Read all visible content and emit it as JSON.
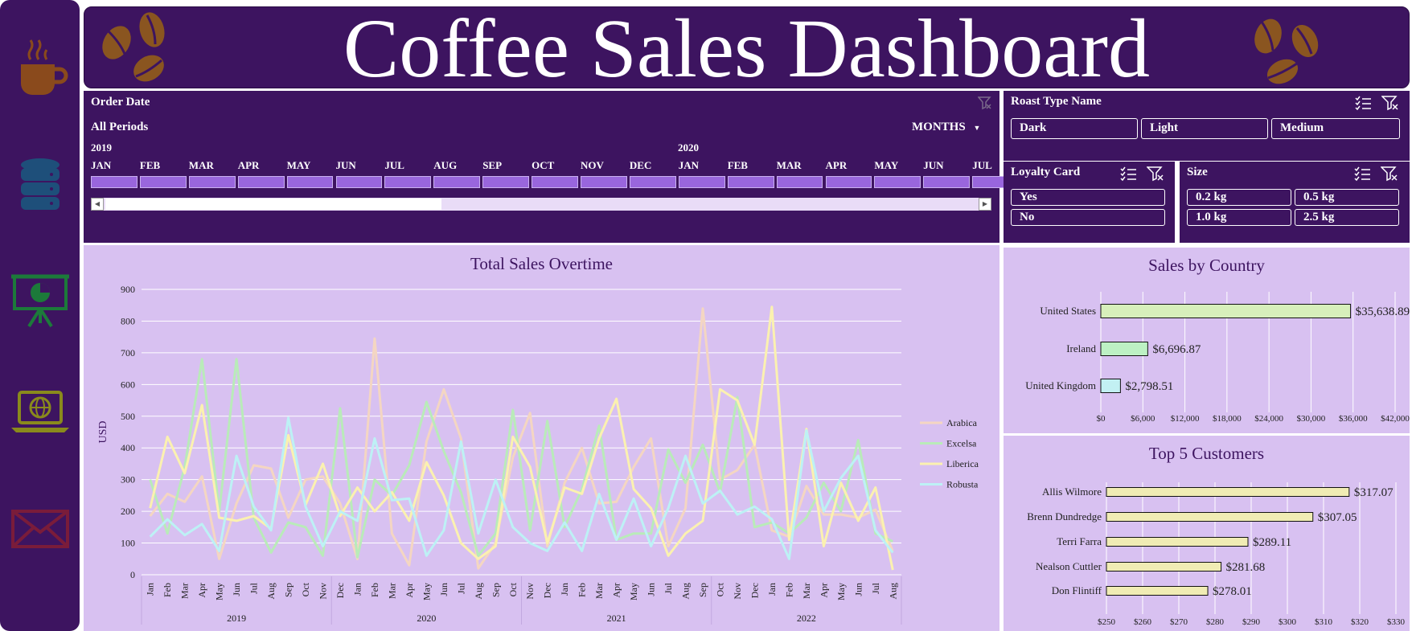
{
  "header": {
    "title": "Coffee Sales Dashboard"
  },
  "sidebar": {
    "items": [
      {
        "icon": "coffee-cup-icon"
      },
      {
        "icon": "database-icon"
      },
      {
        "icon": "presentation-chart-icon"
      },
      {
        "icon": "laptop-globe-icon"
      },
      {
        "icon": "envelope-icon"
      }
    ]
  },
  "timeline": {
    "title": "Order Date",
    "period_label": "All Periods",
    "level": "MONTHS",
    "years": [
      "2019",
      "2020"
    ],
    "months": [
      "JAN",
      "FEB",
      "MAR",
      "APR",
      "MAY",
      "JUN",
      "JUL",
      "AUG",
      "SEP",
      "OCT",
      "NOV",
      "DEC",
      "JAN",
      "FEB",
      "MAR",
      "APR",
      "MAY",
      "JUN",
      "JUL"
    ]
  },
  "slicers": {
    "roast": {
      "title": "Roast Type Name",
      "options": [
        "Dark",
        "Light",
        "Medium"
      ]
    },
    "loyalty": {
      "title": "Loyalty Card",
      "options": [
        "Yes",
        "No"
      ]
    },
    "size": {
      "title": "Size",
      "options": [
        "0.2 kg",
        "0.5 kg",
        "1.0 kg",
        "2.5 kg"
      ]
    }
  },
  "colors": {
    "sidebar": "#3d1460",
    "panel": "#d8c1f1",
    "Arabica": "#f4d6c2",
    "Excelsa": "#b9ebb9",
    "Liberica": "#fbf1b0",
    "Robusta": "#bdf1f5"
  },
  "chart_data": [
    {
      "type": "line",
      "title": "Total Sales Overtime",
      "ylabel": "USD",
      "ylim": [
        0,
        900
      ],
      "yticks": [
        0,
        100,
        200,
        300,
        400,
        500,
        600,
        700,
        800,
        900
      ],
      "years": [
        "2019",
        "2020",
        "2021",
        "2022"
      ],
      "categories": [
        "Jan",
        "Feb",
        "Mar",
        "Apr",
        "May",
        "Jun",
        "Jul",
        "Aug",
        "Sep",
        "Oct",
        "Nov",
        "Dec",
        "Jan",
        "Feb",
        "Mar",
        "Apr",
        "May",
        "Jun",
        "Jul",
        "Aug",
        "Sep",
        "Oct",
        "Nov",
        "Dec",
        "Jan",
        "Feb",
        "Mar",
        "Apr",
        "May",
        "Jun",
        "Jul",
        "Aug",
        "Sep",
        "Oct",
        "Nov",
        "Dec",
        "Jan",
        "Feb",
        "Mar",
        "Apr",
        "May",
        "Jun",
        "Jul",
        "Aug"
      ],
      "legend_position": "right",
      "series": [
        {
          "name": "Arabica",
          "values": [
            185,
            255,
            230,
            310,
            50,
            225,
            345,
            335,
            180,
            300,
            310,
            225,
            50,
            745,
            130,
            30,
            420,
            585,
            430,
            20,
            100,
            370,
            510,
            90,
            290,
            400,
            225,
            230,
            340,
            430,
            90,
            210,
            840,
            300,
            330,
            410,
            140,
            120,
            280,
            190,
            190,
            180,
            205,
            75
          ]
        },
        {
          "name": "Excelsa",
          "values": [
            300,
            130,
            340,
            680,
            200,
            680,
            180,
            70,
            165,
            150,
            60,
            525,
            55,
            300,
            250,
            345,
            545,
            390,
            260,
            60,
            130,
            520,
            140,
            485,
            150,
            270,
            470,
            110,
            130,
            130,
            395,
            290,
            410,
            260,
            560,
            150,
            165,
            130,
            180,
            290,
            200,
            425,
            130,
            105
          ]
        },
        {
          "name": "Liberica",
          "values": [
            210,
            435,
            320,
            535,
            180,
            170,
            185,
            145,
            440,
            220,
            350,
            185,
            275,
            200,
            260,
            170,
            355,
            250,
            100,
            50,
            90,
            435,
            340,
            100,
            275,
            255,
            430,
            555,
            270,
            210,
            60,
            130,
            170,
            585,
            550,
            410,
            845,
            110,
            460,
            90,
            290,
            170,
            275,
            15
          ]
        },
        {
          "name": "Robusta",
          "values": [
            120,
            175,
            125,
            160,
            75,
            375,
            215,
            140,
            495,
            215,
            90,
            200,
            170,
            430,
            235,
            240,
            60,
            140,
            420,
            130,
            300,
            150,
            100,
            75,
            165,
            75,
            255,
            110,
            240,
            90,
            210,
            375,
            225,
            265,
            190,
            215,
            175,
            50,
            455,
            200,
            305,
            375,
            140,
            70
          ]
        }
      ]
    },
    {
      "type": "bar",
      "title": "Sales by Country",
      "categories": [
        "United States",
        "Ireland",
        "United Kingdom"
      ],
      "values": [
        35638.89,
        6696.87,
        2798.51
      ],
      "value_labels": [
        "$35,638.89",
        "$6,696.87",
        "$2,798.51"
      ],
      "xlim": [
        0,
        42000
      ],
      "xtick_labels": [
        "$0",
        "$6,000",
        "$12,000",
        "$18,000",
        "$24,000",
        "$30,000",
        "$36,000",
        "$42,000"
      ],
      "bar_colors": [
        "#d7efbb",
        "#bdf1c4",
        "#c2f0f3"
      ]
    },
    {
      "type": "bar",
      "title": "Top 5 Customers",
      "categories": [
        "Allis Wilmore",
        "Brenn Dundredge",
        "Terri Farra",
        "Nealson Cuttler",
        "Don Flintiff"
      ],
      "values": [
        317.07,
        307.05,
        289.11,
        281.68,
        278.01
      ],
      "value_labels": [
        "$317.07",
        "$307.05",
        "$289.11",
        "$281.68",
        "$278.01"
      ],
      "xlim": [
        250,
        330
      ],
      "xtick_labels": [
        "$250",
        "$260",
        "$270",
        "$280",
        "$290",
        "$300",
        "$310",
        "$320",
        "$330"
      ],
      "bar_color": "#f0ecb4"
    }
  ]
}
